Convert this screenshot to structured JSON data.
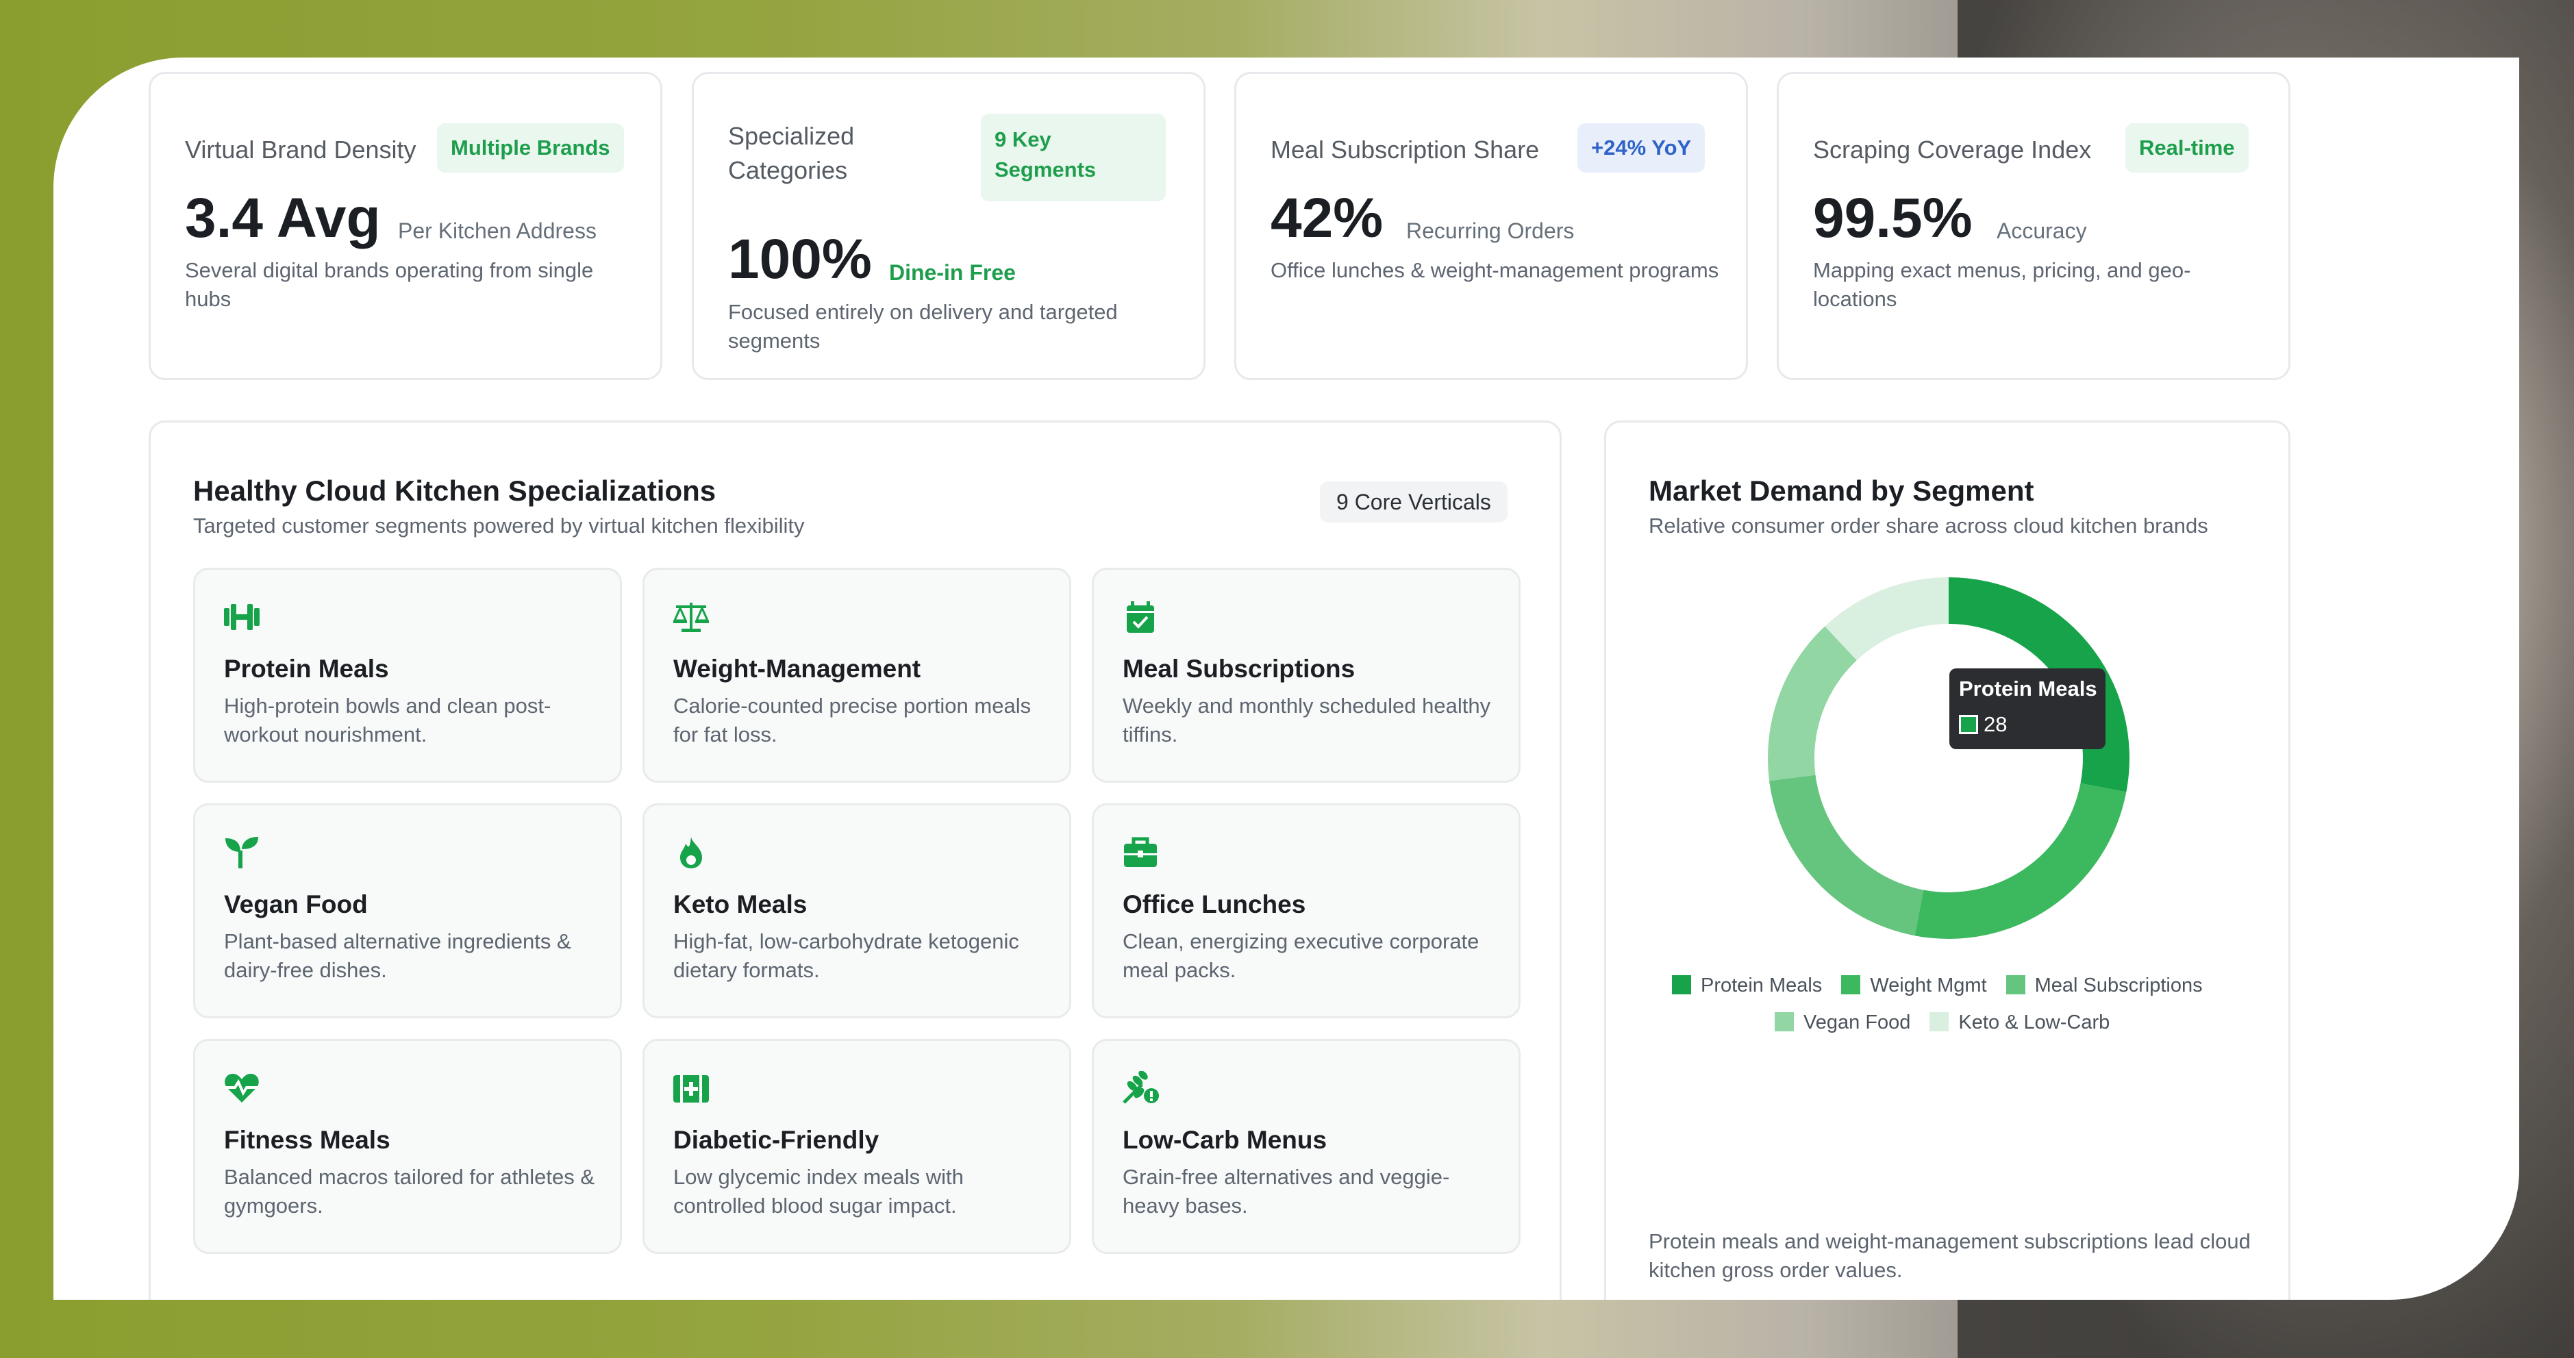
{
  "colors": {
    "accent_green": "#16a34a",
    "badge_green_text": "#1e9e4c",
    "badge_blue_text": "#2f63c9"
  },
  "stats": [
    {
      "title": "Virtual Brand Density",
      "badge": "Multiple Brands",
      "value": "3.4 Avg",
      "suffix": "Per Kitchen Address",
      "desc": "Several digital brands operating from single hubs"
    },
    {
      "title": "Specialized Categories",
      "badge": "9 Key Segments",
      "value": "100%",
      "suffix": "Dine-in Free",
      "desc": "Focused entirely on delivery and targeted segments"
    },
    {
      "title": "Meal Subscription Share",
      "badge": "+24% YoY",
      "value": "42%",
      "suffix": "Recurring Orders",
      "desc": "Office lunches & weight-management programs"
    },
    {
      "title": "Scraping Coverage Index",
      "badge": "Real-time",
      "value": "99.5%",
      "suffix": "Accuracy",
      "desc": "Mapping exact menus, pricing, and geo-locations"
    }
  ],
  "specializations": {
    "title": "Healthy Cloud Kitchen Specializations",
    "subtitle": "Targeted customer segments powered by virtual kitchen flexibility",
    "pill": "9 Core Verticals",
    "items": [
      {
        "icon": "dumbbell-icon",
        "name": "Protein Meals",
        "desc": "High-protein bowls and clean post-workout nourishment."
      },
      {
        "icon": "scale-icon",
        "name": "Weight-Management",
        "desc": "Calorie-counted precise portion meals for fat loss."
      },
      {
        "icon": "calendar-check-icon",
        "name": "Meal Subscriptions",
        "desc": "Weekly and monthly scheduled healthy tiffins."
      },
      {
        "icon": "seedling-icon",
        "name": "Vegan Food",
        "desc": "Plant-based alternative ingredients & dairy-free dishes."
      },
      {
        "icon": "flame-icon",
        "name": "Keto Meals",
        "desc": "High-fat, low-carbohydrate ketogenic dietary formats."
      },
      {
        "icon": "briefcase-icon",
        "name": "Office Lunches",
        "desc": "Clean, energizing executive corporate meal packs."
      },
      {
        "icon": "heart-pulse-icon",
        "name": "Fitness Meals",
        "desc": "Balanced macros tailored for athletes & gymgoers."
      },
      {
        "icon": "medical-kit-icon",
        "name": "Diabetic-Friendly",
        "desc": "Low glycemic index meals with controlled blood sugar impact."
      },
      {
        "icon": "wheat-off-icon",
        "name": "Low-Carb Menus",
        "desc": "Grain-free alternatives and veggie-heavy bases."
      }
    ]
  },
  "demand": {
    "title": "Market Demand by Segment",
    "subtitle": "Relative consumer order share across cloud kitchen brands",
    "footnote": "Protein meals and weight-management subscriptions lead cloud kitchen gross order values.",
    "tooltip": {
      "label": "Protein Meals",
      "value": "28"
    }
  },
  "chart_data": {
    "type": "pie",
    "donut": true,
    "categories": [
      "Protein Meals",
      "Weight Mgmt",
      "Meal Subscriptions",
      "Vegan Food",
      "Keto & Low-Carb"
    ],
    "values": [
      28,
      25,
      20,
      15,
      12
    ],
    "colors": [
      "#16a34a",
      "#3cb85f",
      "#65c57f",
      "#92d6a3",
      "#d9efdf"
    ],
    "legend": "bottom"
  }
}
